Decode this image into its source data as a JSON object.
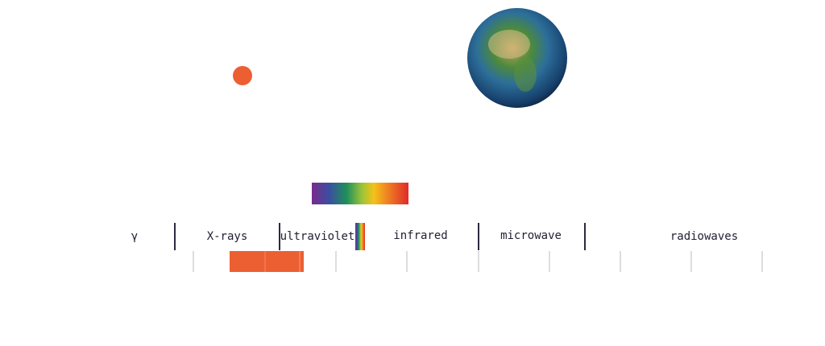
{
  "spectrum": {
    "bands": [
      "γ",
      "X-rays",
      "ultraviolet",
      "infrared",
      "microwave",
      "radiowaves"
    ]
  }
}
